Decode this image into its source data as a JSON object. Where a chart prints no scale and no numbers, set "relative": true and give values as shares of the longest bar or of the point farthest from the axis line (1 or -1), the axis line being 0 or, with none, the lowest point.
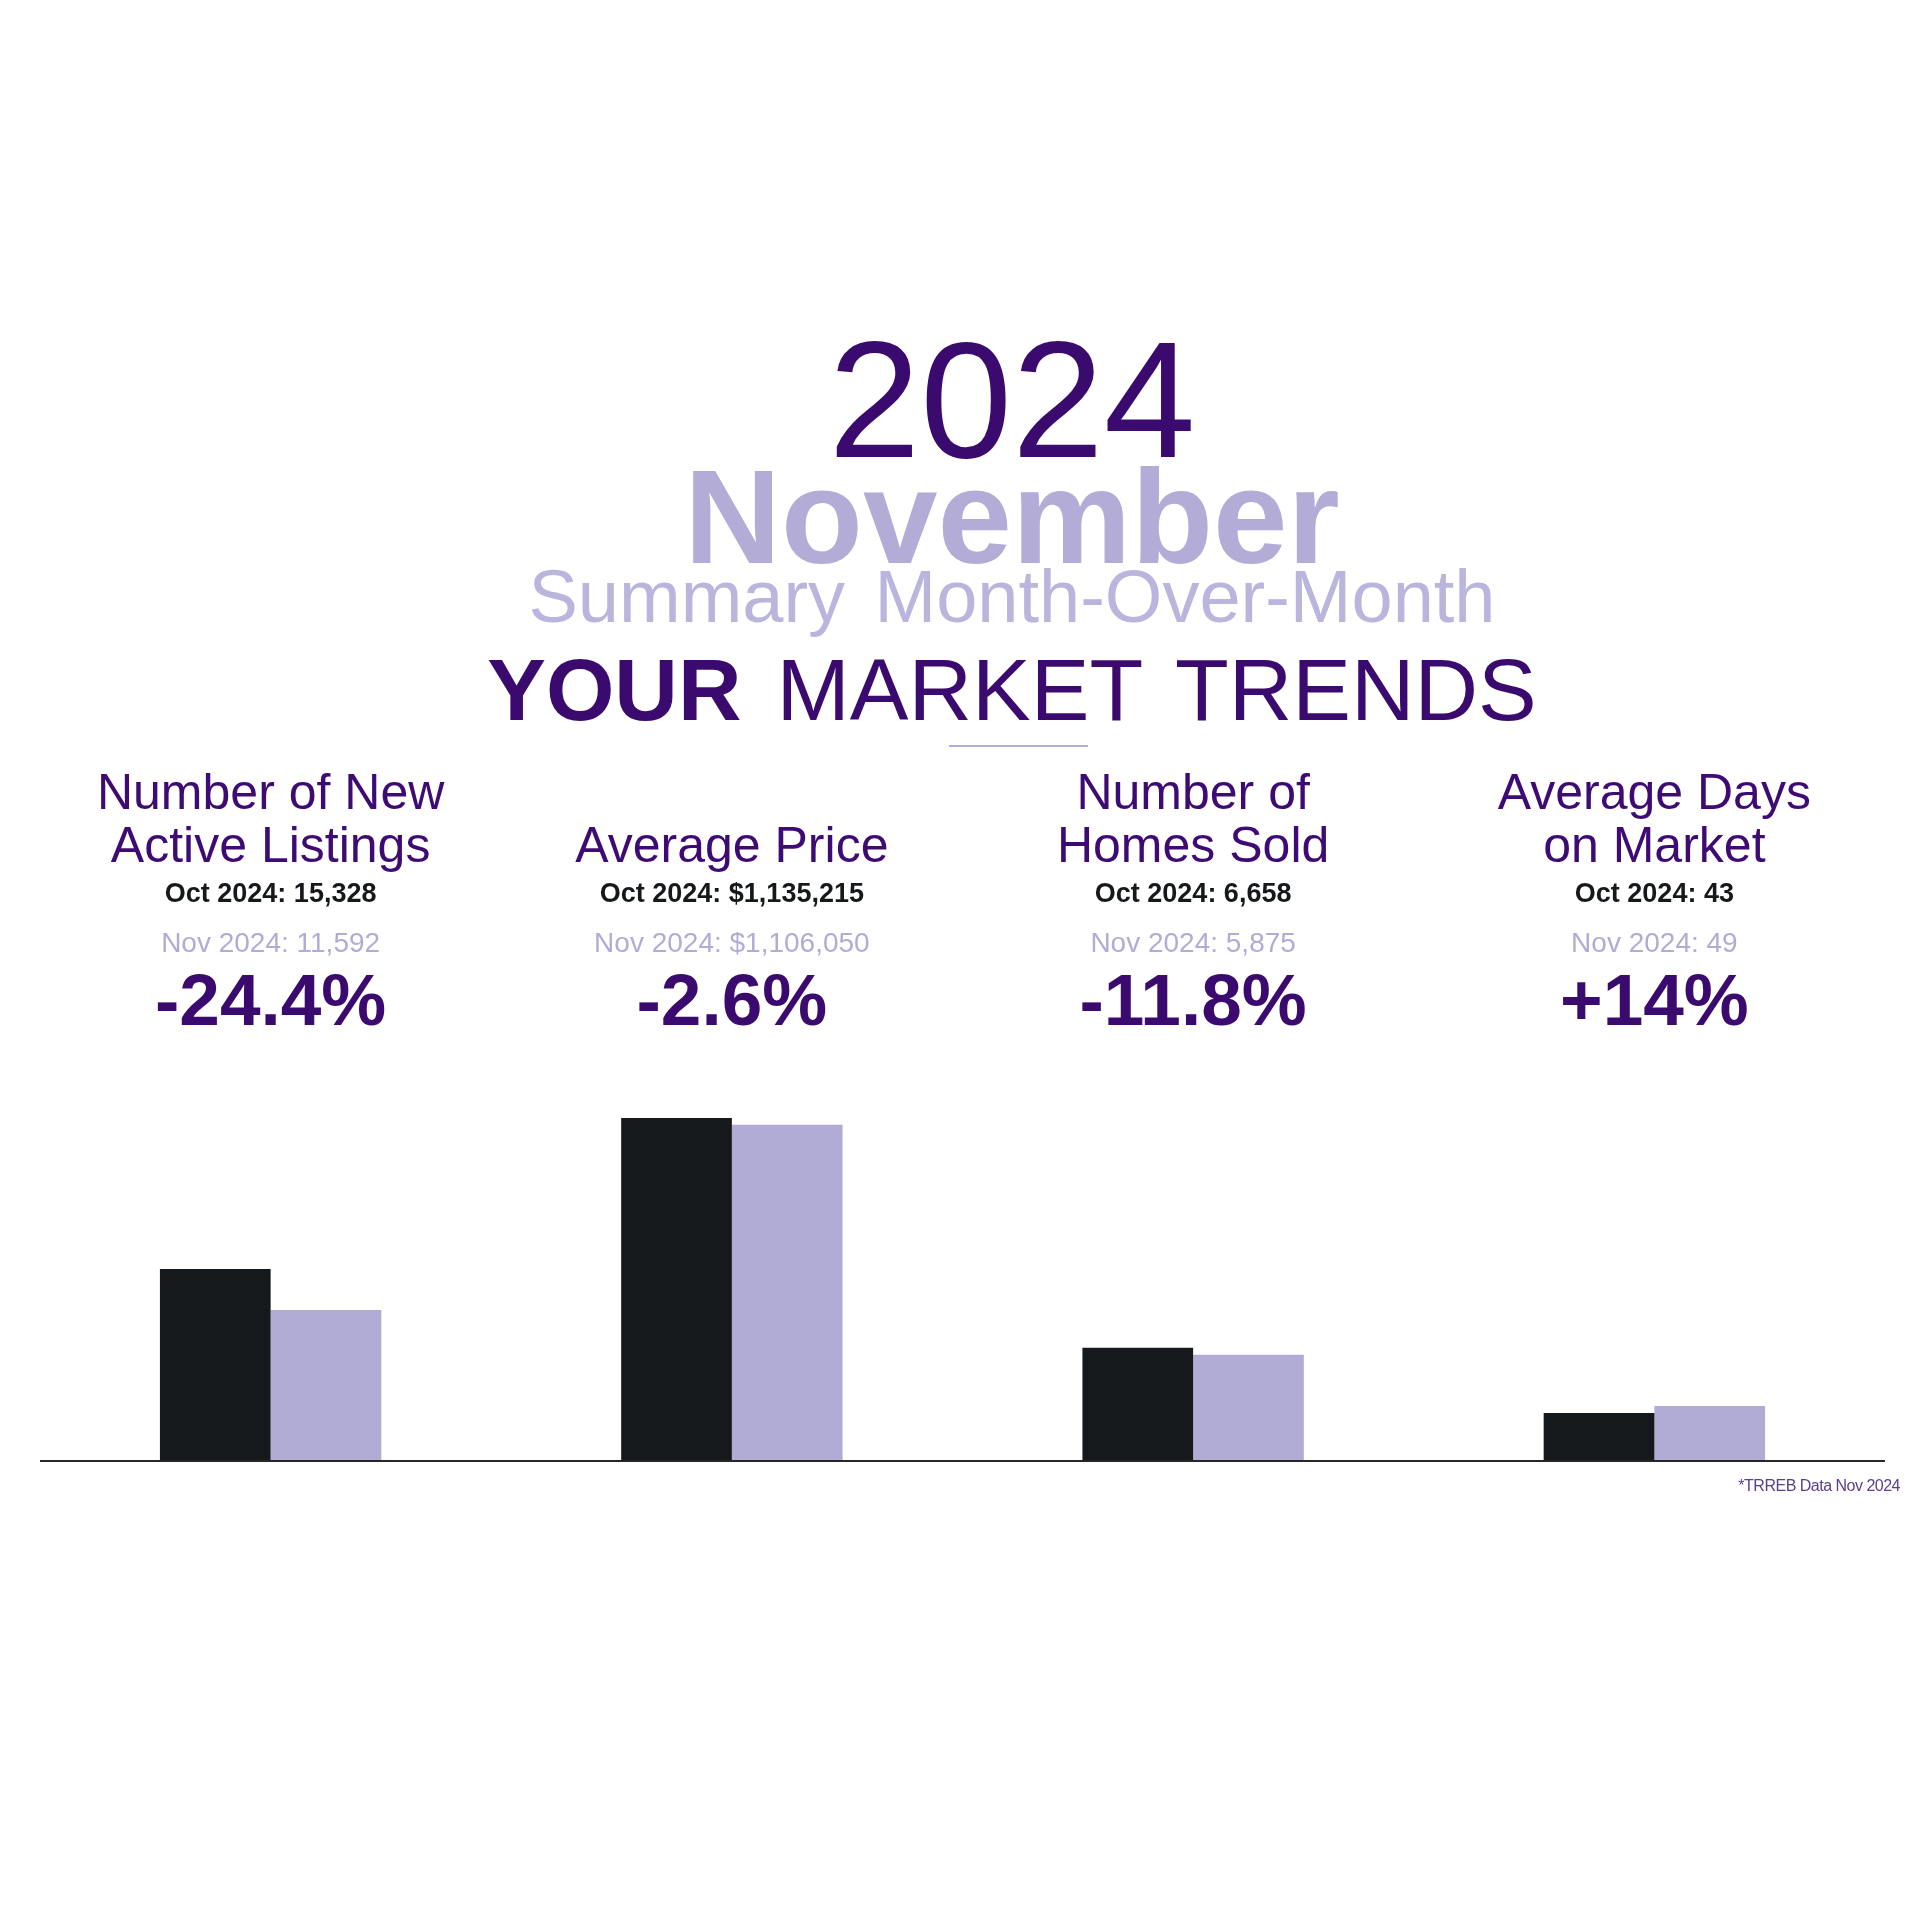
{
  "chart_data": {
    "type": "bar",
    "title": "2024",
    "subtitle": "November",
    "categories": [
      "Number of New Active Listings",
      "Average Price",
      "Number of Homes Sold",
      "Average Days on Market"
    ],
    "series": [
      {
        "color": "#16191c",
        "values": [
          0.56,
          1,
          0.33,
          0.14
        ]
      },
      {
        "color": "#b1acd6",
        "values": [
          0.44,
          0.98,
          0.31,
          0.16
        ]
      }
    ],
    "relative": true,
    "annotations": [
      "Summary Month-Over-Month",
      "YOUR MARKET TRENDS",
      "Oct 2024: 15,328",
      "Nov 2024: 11,592",
      "-24.4%",
      "Oct 2024: $1,135,215",
      "Nov 2024: $1,106,050",
      "-2.6%",
      "Oct 2024: 6,658",
      "Nov 2024: 5,875",
      "-11.8%",
      "Oct 2024: 43",
      "Nov 2024: 49",
      "+14%",
      "*TRREB Data Nov 2024"
    ]
  }
}
